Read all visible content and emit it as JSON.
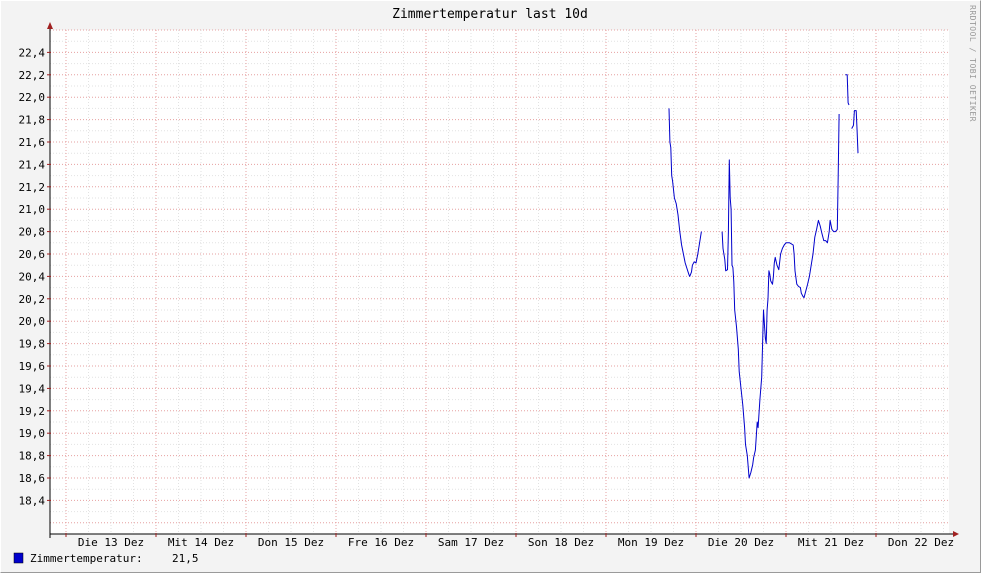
{
  "chart_data": {
    "type": "line",
    "title": "Zimmertemperatur last 10d",
    "watermark": "RRDTOOL / TOBI OETIKER",
    "x_unit": "day",
    "x_range": [
      0,
      9.85
    ],
    "x_ticks": [
      {
        "day": 0,
        "label": "Die 13 Dez"
      },
      {
        "day": 1,
        "label": "Mit 14 Dez"
      },
      {
        "day": 2,
        "label": "Don 15 Dez"
      },
      {
        "day": 3,
        "label": "Fre 16 Dez"
      },
      {
        "day": 4,
        "label": "Sam 17 Dez"
      },
      {
        "day": 5,
        "label": "Son 18 Dez"
      },
      {
        "day": 6,
        "label": "Mon 19 Dez"
      },
      {
        "day": 7,
        "label": "Die 20 Dez"
      },
      {
        "day": 8,
        "label": "Mit 21 Dez"
      },
      {
        "day": 9,
        "label": "Don 22 Dez"
      }
    ],
    "ylim": [
      18.1,
      22.6
    ],
    "y_ticks": [
      "18,4",
      "18,6",
      "18,8",
      "19,0",
      "19,2",
      "19,4",
      "19,6",
      "19,8",
      "20,0",
      "20,2",
      "20,4",
      "20,6",
      "20,8",
      "21,0",
      "21,2",
      "21,4",
      "21,6",
      "21,8",
      "22,0",
      "22,2",
      "22,4"
    ],
    "grid": true,
    "series": [
      {
        "name": "Zimmertemperatur",
        "color": "#0000cc",
        "segments": [
          [
            [
              6.7,
              21.9
            ],
            [
              6.71,
              21.6
            ],
            [
              6.72,
              21.55
            ],
            [
              6.73,
              21.3
            ],
            [
              6.74,
              21.25
            ],
            [
              6.76,
              21.1
            ],
            [
              6.78,
              21.05
            ],
            [
              6.8,
              20.95
            ],
            [
              6.82,
              20.8
            ],
            [
              6.84,
              20.68
            ],
            [
              6.86,
              20.6
            ],
            [
              6.88,
              20.52
            ],
            [
              6.9,
              20.47
            ],
            [
              6.92,
              20.42
            ],
            [
              6.93,
              20.4
            ],
            [
              6.95,
              20.44
            ],
            [
              6.96,
              20.5
            ],
            [
              6.98,
              20.53
            ],
            [
              7.0,
              20.52
            ],
            [
              7.02,
              20.6
            ],
            [
              7.04,
              20.7
            ],
            [
              7.06,
              20.8
            ]
          ],
          [
            [
              7.29,
              20.8
            ],
            [
              7.3,
              20.65
            ],
            [
              7.32,
              20.55
            ],
            [
              7.33,
              20.45
            ],
            [
              7.35,
              20.46
            ],
            [
              7.36,
              20.8
            ],
            [
              7.37,
              21.44
            ],
            [
              7.38,
              21.1
            ],
            [
              7.39,
              21.0
            ],
            [
              7.4,
              20.5
            ],
            [
              7.41,
              20.48
            ],
            [
              7.42,
              20.35
            ],
            [
              7.43,
              20.1
            ],
            [
              7.45,
              19.95
            ],
            [
              7.47,
              19.75
            ],
            [
              7.48,
              19.55
            ],
            [
              7.5,
              19.4
            ],
            [
              7.52,
              19.25
            ],
            [
              7.54,
              19.05
            ],
            [
              7.55,
              18.9
            ],
            [
              7.57,
              18.8
            ],
            [
              7.58,
              18.7
            ],
            [
              7.59,
              18.6
            ],
            [
              7.61,
              18.65
            ],
            [
              7.63,
              18.72
            ],
            [
              7.64,
              18.78
            ],
            [
              7.66,
              18.85
            ],
            [
              7.68,
              19.1
            ],
            [
              7.69,
              19.05
            ],
            [
              7.71,
              19.3
            ],
            [
              7.73,
              19.5
            ],
            [
              7.74,
              19.8
            ],
            [
              7.75,
              20.1
            ],
            [
              7.77,
              19.85
            ],
            [
              7.78,
              19.8
            ],
            [
              7.79,
              20.1
            ],
            [
              7.8,
              20.2
            ],
            [
              7.81,
              20.45
            ],
            [
              7.82,
              20.42
            ],
            [
              7.83,
              20.36
            ],
            [
              7.85,
              20.33
            ],
            [
              7.86,
              20.4
            ],
            [
              7.87,
              20.52
            ],
            [
              7.88,
              20.57
            ],
            [
              7.9,
              20.5
            ],
            [
              7.92,
              20.46
            ],
            [
              7.94,
              20.6
            ],
            [
              7.96,
              20.65
            ],
            [
              7.98,
              20.68
            ],
            [
              8.0,
              20.7
            ],
            [
              8.04,
              20.7
            ],
            [
              8.08,
              20.68
            ],
            [
              8.09,
              20.6
            ],
            [
              8.1,
              20.45
            ],
            [
              8.12,
              20.33
            ],
            [
              8.14,
              20.31
            ],
            [
              8.16,
              20.3
            ],
            [
              8.17,
              20.25
            ],
            [
              8.19,
              20.22
            ],
            [
              8.2,
              20.21
            ],
            [
              8.22,
              20.27
            ],
            [
              8.24,
              20.33
            ],
            [
              8.26,
              20.4
            ],
            [
              8.28,
              20.5
            ],
            [
              8.3,
              20.6
            ],
            [
              8.32,
              20.75
            ],
            [
              8.34,
              20.82
            ],
            [
              8.36,
              20.9
            ],
            [
              8.38,
              20.85
            ],
            [
              8.4,
              20.78
            ],
            [
              8.42,
              20.72
            ],
            [
              8.44,
              20.72
            ],
            [
              8.46,
              20.7
            ],
            [
              8.48,
              20.8
            ],
            [
              8.49,
              20.9
            ],
            [
              8.51,
              20.82
            ],
            [
              8.53,
              20.8
            ],
            [
              8.55,
              20.8
            ],
            [
              8.57,
              20.82
            ],
            [
              8.58,
              21.3
            ],
            [
              8.59,
              21.85
            ]
          ],
          [
            [
              8.66,
              22.2
            ],
            [
              8.68,
              22.2
            ],
            [
              8.69,
              21.95
            ],
            [
              8.7,
              21.93
            ]
          ],
          [
            [
              8.73,
              21.72
            ],
            [
              8.75,
              21.75
            ],
            [
              8.76,
              21.88
            ],
            [
              8.78,
              21.88
            ],
            [
              8.79,
              21.7
            ],
            [
              8.8,
              21.5
            ]
          ]
        ]
      }
    ]
  },
  "legend": {
    "label": "Zimmertemperatur:",
    "value": "21,5"
  }
}
